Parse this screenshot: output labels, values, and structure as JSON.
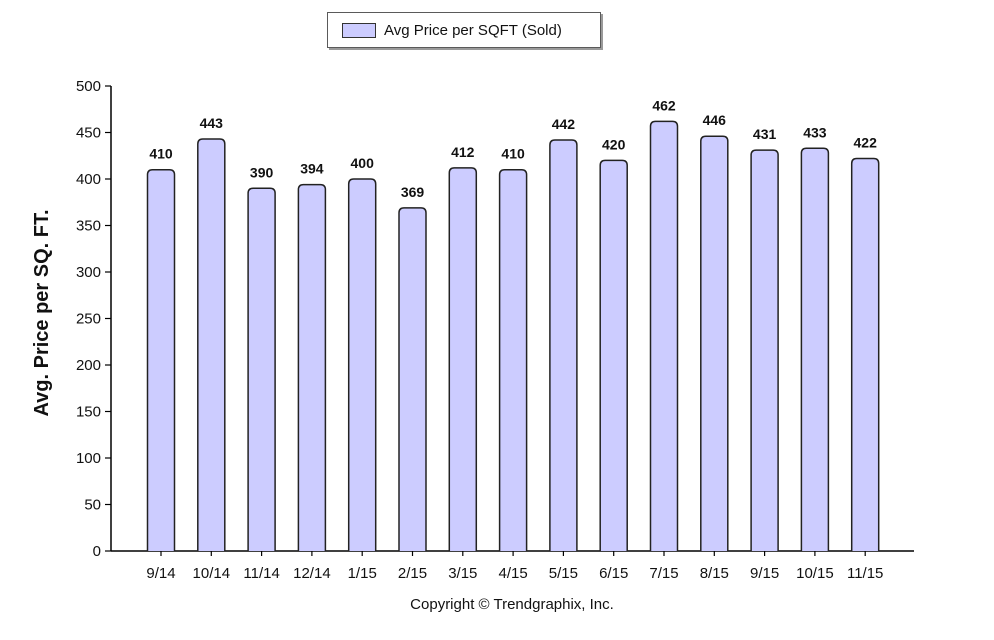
{
  "legend": {
    "label": "Avg Price per SQFT (Sold)"
  },
  "footer": {
    "copyright": "Copyright © Trendgraphix, Inc."
  },
  "chart_data": {
    "type": "bar",
    "title": "",
    "xlabel": "",
    "ylabel": "Avg. Price per SQ. FT.",
    "ylim": [
      0,
      500
    ],
    "yticks": [
      0,
      50,
      100,
      150,
      200,
      250,
      300,
      350,
      400,
      450,
      500
    ],
    "grid": false,
    "legend_position": "top-center",
    "categories": [
      "9/14",
      "10/14",
      "11/14",
      "12/14",
      "1/15",
      "2/15",
      "3/15",
      "4/15",
      "5/15",
      "6/15",
      "7/15",
      "8/15",
      "9/15",
      "10/15",
      "11/15"
    ],
    "series": [
      {
        "name": "Avg Price per SQFT (Sold)",
        "values": [
          410,
          443,
          390,
          394,
          400,
          369,
          412,
          410,
          442,
          420,
          462,
          446,
          431,
          433,
          422
        ]
      }
    ],
    "bar_color": "#ccccff",
    "bar_stroke": "#222222"
  }
}
